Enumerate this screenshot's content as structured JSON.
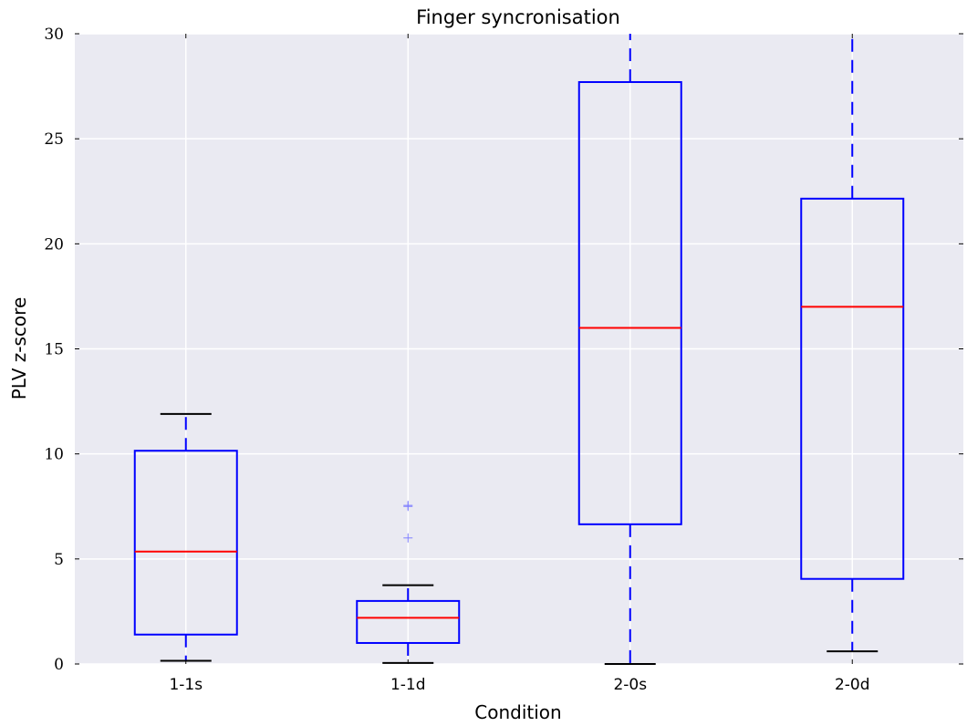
{
  "chart_data": {
    "type": "box",
    "title": "Finger syncronisation",
    "xlabel": "Condition",
    "ylabel": "PLV z-score",
    "categories": [
      "1-1s",
      "1-1d",
      "2-0s",
      "2-0d"
    ],
    "ylim": [
      0,
      30
    ],
    "yticks": [
      0,
      5,
      10,
      15,
      20,
      25,
      30
    ],
    "grid": true,
    "boxes": [
      {
        "category": "1-1s",
        "whisker_low": 0.15,
        "q1": 1.4,
        "median": 5.35,
        "q3": 10.15,
        "whisker_high": 11.9,
        "outliers": []
      },
      {
        "category": "1-1d",
        "whisker_low": 0.05,
        "q1": 1.0,
        "median": 2.2,
        "q3": 3.0,
        "whisker_high": 3.75,
        "outliers": [
          6.0,
          7.5,
          7.55
        ]
      },
      {
        "category": "2-0s",
        "whisker_low": 0.0,
        "q1": 6.65,
        "median": 16.0,
        "q3": 27.7,
        "whisker_high": 30.0,
        "outliers": []
      },
      {
        "category": "2-0d",
        "whisker_low": 0.6,
        "q1": 4.05,
        "median": 17.0,
        "q3": 22.15,
        "whisker_high": 30.0,
        "outliers": []
      }
    ],
    "colors": {
      "box": "#0000ff",
      "median": "#ff0000",
      "whisker_cap": "#000000",
      "outlier": "#7f7fff",
      "background": "#eaeaf2",
      "grid": "#ffffff"
    }
  }
}
